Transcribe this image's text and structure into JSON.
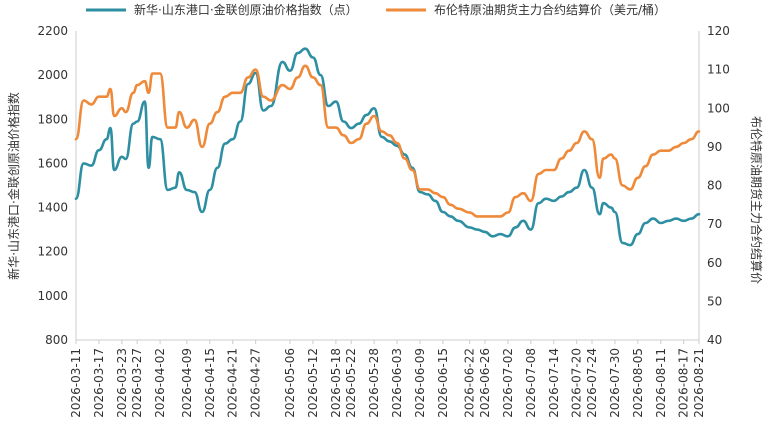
{
  "chart_data": {
    "type": "line",
    "ylabel_left": "新华·山东港口·金联创原油价格指数",
    "ylabel_right": "布伦特原油期货主力合约结算价",
    "y_left_range": [
      800,
      2200
    ],
    "y_left_ticks": [
      "800",
      "1000",
      "1200",
      "1400",
      "1600",
      "1800",
      "2000",
      "2200"
    ],
    "y_right_range": [
      40,
      120
    ],
    "y_right_ticks": [
      "40",
      "50",
      "60",
      "70",
      "80",
      "90",
      "100",
      "110",
      "120"
    ],
    "x_range": [
      "2026-03-11",
      "2026-08-21"
    ],
    "x_tick_labels": [
      "2026-03-11",
      "2026-03-17",
      "2026-03-23",
      "2026-03-27",
      "2026-04-02",
      "2026-04-09",
      "2026-04-15",
      "2026-04-21",
      "2026-04-27",
      "2026-05-06",
      "2026-05-12",
      "2026-05-18",
      "2026-05-22",
      "2026-05-28",
      "2026-06-03",
      "2026-06-09",
      "2026-06-15",
      "2026-06-22",
      "2026-06-26",
      "2026-07-02",
      "2026-07-08",
      "2026-07-14",
      "2026-07-20",
      "2026-07-24",
      "2026-07-30",
      "2026-08-05",
      "2026-08-11",
      "2026-08-17",
      "2026-08-21"
    ],
    "grid": false,
    "legend_position": "top",
    "series": [
      {
        "name": "新华·山东港口·金联创原油价格指数（点）",
        "color": "#2E8FA3",
        "axis": "left",
        "points": [
          [
            "2026-03-11",
            1440
          ],
          [
            "2026-03-13",
            1600
          ],
          [
            "2026-03-15",
            1590
          ],
          [
            "2026-03-17",
            1660
          ],
          [
            "2026-03-19",
            1710
          ],
          [
            "2026-03-20",
            1760
          ],
          [
            "2026-03-21",
            1570
          ],
          [
            "2026-03-23",
            1630
          ],
          [
            "2026-03-24",
            1620
          ],
          [
            "2026-03-26",
            1780
          ],
          [
            "2026-03-27",
            1790
          ],
          [
            "2026-03-29",
            1880
          ],
          [
            "2026-03-30",
            1580
          ],
          [
            "2026-03-31",
            1720
          ],
          [
            "2026-04-02",
            1710
          ],
          [
            "2026-04-04",
            1480
          ],
          [
            "2026-04-06",
            1490
          ],
          [
            "2026-04-07",
            1560
          ],
          [
            "2026-04-09",
            1480
          ],
          [
            "2026-04-11",
            1470
          ],
          [
            "2026-04-13",
            1380
          ],
          [
            "2026-04-15",
            1480
          ],
          [
            "2026-04-17",
            1580
          ],
          [
            "2026-04-19",
            1690
          ],
          [
            "2026-04-21",
            1710
          ],
          [
            "2026-04-23",
            1790
          ],
          [
            "2026-04-25",
            1960
          ],
          [
            "2026-04-27",
            2010
          ],
          [
            "2026-04-29",
            1840
          ],
          [
            "2026-05-01",
            1860
          ],
          [
            "2026-05-04",
            2060
          ],
          [
            "2026-05-06",
            2020
          ],
          [
            "2026-05-08",
            2100
          ],
          [
            "2026-05-10",
            2120
          ],
          [
            "2026-05-12",
            2080
          ],
          [
            "2026-05-14",
            2000
          ],
          [
            "2026-05-16",
            1860
          ],
          [
            "2026-05-18",
            1880
          ],
          [
            "2026-05-20",
            1790
          ],
          [
            "2026-05-22",
            1760
          ],
          [
            "2026-05-24",
            1780
          ],
          [
            "2026-05-26",
            1820
          ],
          [
            "2026-05-28",
            1850
          ],
          [
            "2026-05-30",
            1720
          ],
          [
            "2026-06-01",
            1700
          ],
          [
            "2026-06-03",
            1680
          ],
          [
            "2026-06-05",
            1640
          ],
          [
            "2026-06-07",
            1580
          ],
          [
            "2026-06-09",
            1470
          ],
          [
            "2026-06-11",
            1460
          ],
          [
            "2026-06-13",
            1430
          ],
          [
            "2026-06-15",
            1380
          ],
          [
            "2026-06-17",
            1360
          ],
          [
            "2026-06-19",
            1340
          ],
          [
            "2026-06-22",
            1310
          ],
          [
            "2026-06-24",
            1300
          ],
          [
            "2026-06-26",
            1290
          ],
          [
            "2026-06-28",
            1270
          ],
          [
            "2026-06-30",
            1280
          ],
          [
            "2026-07-02",
            1270
          ],
          [
            "2026-07-04",
            1310
          ],
          [
            "2026-07-06",
            1340
          ],
          [
            "2026-07-08",
            1300
          ],
          [
            "2026-07-10",
            1420
          ],
          [
            "2026-07-12",
            1440
          ],
          [
            "2026-07-14",
            1430
          ],
          [
            "2026-07-16",
            1450
          ],
          [
            "2026-07-18",
            1470
          ],
          [
            "2026-07-20",
            1490
          ],
          [
            "2026-07-22",
            1570
          ],
          [
            "2026-07-24",
            1490
          ],
          [
            "2026-07-26",
            1370
          ],
          [
            "2026-07-27",
            1420
          ],
          [
            "2026-07-29",
            1400
          ],
          [
            "2026-07-30",
            1380
          ],
          [
            "2026-08-01",
            1240
          ],
          [
            "2026-08-03",
            1230
          ],
          [
            "2026-08-05",
            1280
          ],
          [
            "2026-08-07",
            1330
          ],
          [
            "2026-08-09",
            1350
          ],
          [
            "2026-08-11",
            1330
          ],
          [
            "2026-08-13",
            1340
          ],
          [
            "2026-08-15",
            1350
          ],
          [
            "2026-08-17",
            1340
          ],
          [
            "2026-08-19",
            1350
          ],
          [
            "2026-08-21",
            1370
          ]
        ]
      },
      {
        "name": "布伦特原油期货主力合约结算价（美元/桶）",
        "color": "#EE8A3A",
        "axis": "right",
        "points": [
          [
            "2026-03-11",
            92
          ],
          [
            "2026-03-13",
            102
          ],
          [
            "2026-03-15",
            101
          ],
          [
            "2026-03-17",
            103
          ],
          [
            "2026-03-19",
            103
          ],
          [
            "2026-03-20",
            105
          ],
          [
            "2026-03-21",
            98
          ],
          [
            "2026-03-23",
            100
          ],
          [
            "2026-03-24",
            99
          ],
          [
            "2026-03-26",
            104
          ],
          [
            "2026-03-27",
            106
          ],
          [
            "2026-03-29",
            107
          ],
          [
            "2026-03-30",
            104
          ],
          [
            "2026-03-31",
            109
          ],
          [
            "2026-04-02",
            109
          ],
          [
            "2026-04-04",
            95
          ],
          [
            "2026-04-06",
            95
          ],
          [
            "2026-04-07",
            99
          ],
          [
            "2026-04-09",
            95
          ],
          [
            "2026-04-11",
            97
          ],
          [
            "2026-04-13",
            90
          ],
          [
            "2026-04-15",
            96
          ],
          [
            "2026-04-17",
            99
          ],
          [
            "2026-04-19",
            103
          ],
          [
            "2026-04-21",
            104
          ],
          [
            "2026-04-23",
            104
          ],
          [
            "2026-04-25",
            108
          ],
          [
            "2026-04-27",
            110
          ],
          [
            "2026-04-29",
            103
          ],
          [
            "2026-05-01",
            102
          ],
          [
            "2026-05-04",
            106
          ],
          [
            "2026-05-06",
            105
          ],
          [
            "2026-05-08",
            108
          ],
          [
            "2026-05-10",
            111
          ],
          [
            "2026-05-12",
            108
          ],
          [
            "2026-05-14",
            106
          ],
          [
            "2026-05-16",
            95
          ],
          [
            "2026-05-18",
            95
          ],
          [
            "2026-05-20",
            93
          ],
          [
            "2026-05-22",
            91
          ],
          [
            "2026-05-24",
            92
          ],
          [
            "2026-05-26",
            96
          ],
          [
            "2026-05-28",
            98
          ],
          [
            "2026-05-30",
            94
          ],
          [
            "2026-06-01",
            93
          ],
          [
            "2026-06-03",
            91
          ],
          [
            "2026-06-05",
            87
          ],
          [
            "2026-06-07",
            84
          ],
          [
            "2026-06-09",
            79
          ],
          [
            "2026-06-11",
            79
          ],
          [
            "2026-06-13",
            78
          ],
          [
            "2026-06-15",
            77
          ],
          [
            "2026-06-17",
            75
          ],
          [
            "2026-06-19",
            74
          ],
          [
            "2026-06-22",
            73
          ],
          [
            "2026-06-24",
            72
          ],
          [
            "2026-06-26",
            72
          ],
          [
            "2026-06-28",
            72
          ],
          [
            "2026-06-30",
            72
          ],
          [
            "2026-07-02",
            73
          ],
          [
            "2026-07-04",
            77
          ],
          [
            "2026-07-06",
            78
          ],
          [
            "2026-07-08",
            76
          ],
          [
            "2026-07-10",
            83
          ],
          [
            "2026-07-12",
            84
          ],
          [
            "2026-07-14",
            84
          ],
          [
            "2026-07-16",
            87
          ],
          [
            "2026-07-18",
            89
          ],
          [
            "2026-07-20",
            91
          ],
          [
            "2026-07-22",
            94
          ],
          [
            "2026-07-24",
            92
          ],
          [
            "2026-07-26",
            82
          ],
          [
            "2026-07-27",
            87
          ],
          [
            "2026-07-29",
            88
          ],
          [
            "2026-07-30",
            87
          ],
          [
            "2026-08-01",
            80
          ],
          [
            "2026-08-03",
            79
          ],
          [
            "2026-08-05",
            82
          ],
          [
            "2026-08-07",
            85
          ],
          [
            "2026-08-09",
            88
          ],
          [
            "2026-08-11",
            89
          ],
          [
            "2026-08-13",
            89
          ],
          [
            "2026-08-15",
            90
          ],
          [
            "2026-08-17",
            91
          ],
          [
            "2026-08-19",
            92
          ],
          [
            "2026-08-21",
            94
          ]
        ]
      }
    ]
  }
}
